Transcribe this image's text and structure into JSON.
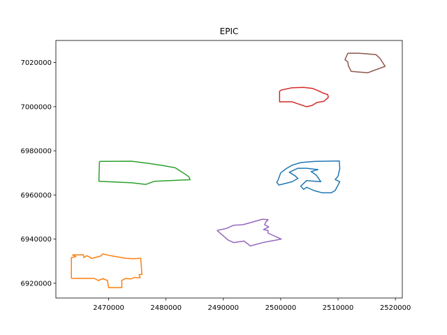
{
  "chart_data": {
    "type": "line",
    "title": "EPIC",
    "xlabel": "",
    "ylabel": "",
    "xlim": [
      2460800,
      2521200
    ],
    "ylim": [
      6913300,
      7030000
    ],
    "grid": false,
    "legend": "none",
    "x_ticks": [
      2470000,
      2480000,
      2490000,
      2500000,
      2510000,
      2520000
    ],
    "x_tick_labels": [
      "2470000",
      "2480000",
      "2490000",
      "2500000",
      "2510000",
      "2520000"
    ],
    "y_ticks": [
      6920000,
      6940000,
      6960000,
      6980000,
      7000000,
      7020000
    ],
    "y_tick_labels": [
      "6920000",
      "6940000",
      "6960000",
      "6980000",
      "7000000",
      "7020000"
    ],
    "series": [
      {
        "color": "#1f77b4",
        "points": [
          [
            2499500,
            6966500
          ],
          [
            2500000,
            6970000
          ],
          [
            2501000,
            6972000
          ],
          [
            2502000,
            6973500
          ],
          [
            2503500,
            6974700
          ],
          [
            2506000,
            6975200
          ],
          [
            2510200,
            6975400
          ],
          [
            2510300,
            6972000
          ],
          [
            2510000,
            6968500
          ],
          [
            2509500,
            6967000
          ],
          [
            2510300,
            6966000
          ],
          [
            2509500,
            6962000
          ],
          [
            2508800,
            6961000
          ],
          [
            2507200,
            6961000
          ],
          [
            2505800,
            6962000
          ],
          [
            2504500,
            6963500
          ],
          [
            2504000,
            6962500
          ],
          [
            2503500,
            6964000
          ],
          [
            2504500,
            6966500
          ],
          [
            2507000,
            6966000
          ],
          [
            2506200,
            6969000
          ],
          [
            2505300,
            6970600
          ],
          [
            2506500,
            6971500
          ],
          [
            2504500,
            6972100
          ],
          [
            2503000,
            6972100
          ],
          [
            2501500,
            6970300
          ],
          [
            2502500,
            6968700
          ],
          [
            2503000,
            6967500
          ],
          [
            2502000,
            6966000
          ],
          [
            2500500,
            6965000
          ],
          [
            2499700,
            6964500
          ],
          [
            2499300,
            6965700
          ],
          [
            2499500,
            6966500
          ]
        ]
      },
      {
        "color": "#ff7f0e",
        "points": [
          [
            2463500,
            6922200
          ],
          [
            2467500,
            6922200
          ],
          [
            2468200,
            6921200
          ],
          [
            2469000,
            6922100
          ],
          [
            2469800,
            6921200
          ],
          [
            2470000,
            6918000
          ],
          [
            2472300,
            6918000
          ],
          [
            2472300,
            6921300
          ],
          [
            2473000,
            6922200
          ],
          [
            2473800,
            6921900
          ],
          [
            2474500,
            6922600
          ],
          [
            2475500,
            6922500
          ],
          [
            2475300,
            6923900
          ],
          [
            2475800,
            6924000
          ],
          [
            2475600,
            6931300
          ],
          [
            2474300,
            6931100
          ],
          [
            2473000,
            6931300
          ],
          [
            2471700,
            6931900
          ],
          [
            2470300,
            6932500
          ],
          [
            2469000,
            6933300
          ],
          [
            2468600,
            6932300
          ],
          [
            2467000,
            6931200
          ],
          [
            2466600,
            6932000
          ],
          [
            2466200,
            6932500
          ],
          [
            2465700,
            6931600
          ],
          [
            2465600,
            6932900
          ],
          [
            2463700,
            6932800
          ],
          [
            2464300,
            6932100
          ],
          [
            2463500,
            6931600
          ],
          [
            2463500,
            6922200
          ]
        ]
      },
      {
        "color": "#2ca02c",
        "points": [
          [
            2468400,
            6975200
          ],
          [
            2474000,
            6975300
          ],
          [
            2477000,
            6974300
          ],
          [
            2479500,
            6973300
          ],
          [
            2481600,
            6972300
          ],
          [
            2483200,
            6969700
          ],
          [
            2484000,
            6968200
          ],
          [
            2484200,
            6966900
          ],
          [
            2478000,
            6966200
          ],
          [
            2476500,
            6964800
          ],
          [
            2474000,
            6965500
          ],
          [
            2468300,
            6966200
          ],
          [
            2468400,
            6975200
          ]
        ]
      },
      {
        "color": "#d62728",
        "points": [
          [
            2499800,
            7007100
          ],
          [
            2500200,
            7007600
          ],
          [
            2502000,
            7008600
          ],
          [
            2504000,
            7008700
          ],
          [
            2505500,
            7008300
          ],
          [
            2506500,
            7007300
          ],
          [
            2507400,
            7006200
          ],
          [
            2508200,
            7005500
          ],
          [
            2508300,
            7004200
          ],
          [
            2507500,
            7002400
          ],
          [
            2506300,
            7001900
          ],
          [
            2505500,
            7000600
          ],
          [
            2504500,
            7000000
          ],
          [
            2502000,
            7002200
          ],
          [
            2499800,
            7002200
          ],
          [
            2499800,
            7007100
          ]
        ]
      },
      {
        "color": "#9467bd",
        "points": [
          [
            2488900,
            6943900
          ],
          [
            2490500,
            6944800
          ],
          [
            2491800,
            6946300
          ],
          [
            2493400,
            6946500
          ],
          [
            2495600,
            6948100
          ],
          [
            2496800,
            6949000
          ],
          [
            2497800,
            6948800
          ],
          [
            2497400,
            6947700
          ],
          [
            2497200,
            6946500
          ],
          [
            2497900,
            6945500
          ],
          [
            2497000,
            6944300
          ],
          [
            2497800,
            6943900
          ],
          [
            2497800,
            6942700
          ],
          [
            2500100,
            6940000
          ],
          [
            2497000,
            6938500
          ],
          [
            2494700,
            6936900
          ],
          [
            2493600,
            6939100
          ],
          [
            2491800,
            6938400
          ],
          [
            2490800,
            6939600
          ],
          [
            2488900,
            6943900
          ]
        ]
      },
      {
        "color": "#8c564b",
        "points": [
          [
            2511700,
            7024200
          ],
          [
            2513500,
            7024200
          ],
          [
            2514900,
            7024000
          ],
          [
            2516000,
            7023700
          ],
          [
            2516600,
            7023600
          ],
          [
            2517300,
            7021900
          ],
          [
            2518200,
            7018300
          ],
          [
            2515200,
            7015400
          ],
          [
            2512300,
            7016000
          ],
          [
            2511800,
            7018500
          ],
          [
            2511700,
            7020300
          ],
          [
            2511200,
            7021300
          ],
          [
            2511700,
            7024200
          ]
        ]
      }
    ]
  }
}
